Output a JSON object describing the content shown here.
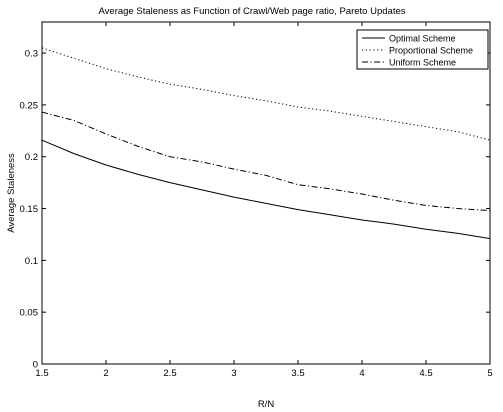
{
  "chart_data": {
    "type": "line",
    "title": "Average Staleness as Function of Crawl/Web page ratio, Pareto Updates",
    "xlabel": "R/N",
    "ylabel": "Average Staleness",
    "xlim": [
      1.5,
      5
    ],
    "ylim": [
      0,
      0.33
    ],
    "xticks": [
      1.5,
      2,
      2.5,
      3,
      3.5,
      4,
      4.5,
      5
    ],
    "xtick_labels": [
      "1.5",
      "2",
      "2.5",
      "3",
      "3.5",
      "4",
      "4.5",
      "5"
    ],
    "yticks": [
      0,
      0.05,
      0.1,
      0.15,
      0.2,
      0.25,
      0.3
    ],
    "ytick_labels": [
      "0",
      "0.05",
      "0.1",
      "0.15",
      "0.2",
      "0.25",
      "0.3"
    ],
    "grid": false,
    "legend_position": "top-right",
    "x": [
      1.5,
      1.75,
      2,
      2.25,
      2.5,
      2.75,
      3,
      3.25,
      3.5,
      3.75,
      4,
      4.25,
      4.5,
      4.75,
      5
    ],
    "series": [
      {
        "name": "Optimal Scheme",
        "style": "solid",
        "color": "#000000",
        "values": [
          0.216,
          0.203,
          0.192,
          0.183,
          0.175,
          0.168,
          0.161,
          0.155,
          0.149,
          0.144,
          0.139,
          0.135,
          0.13,
          0.126,
          0.121
        ]
      },
      {
        "name": "Proportional Scheme",
        "style": "dotted",
        "color": "#000000",
        "values": [
          0.305,
          0.295,
          0.285,
          0.277,
          0.27,
          0.265,
          0.259,
          0.254,
          0.248,
          0.244,
          0.239,
          0.234,
          0.229,
          0.224,
          0.216
        ]
      },
      {
        "name": "Uniform Scheme",
        "style": "dashdot",
        "color": "#000000",
        "values": [
          0.243,
          0.235,
          0.222,
          0.21,
          0.2,
          0.195,
          0.188,
          0.182,
          0.173,
          0.169,
          0.164,
          0.158,
          0.153,
          0.15,
          0.148
        ]
      }
    ]
  }
}
